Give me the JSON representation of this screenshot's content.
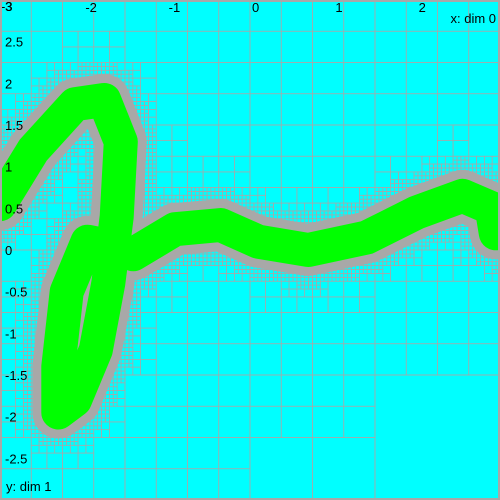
{
  "chart_data": {
    "type": "heatmap",
    "title": "",
    "xlabel": "x: dim 0",
    "ylabel": "y: dim 1",
    "xlim": [
      -3,
      3
    ],
    "ylim": [
      -3,
      3
    ],
    "x_ticks": [
      "-2",
      "-1",
      "0",
      "1",
      "2"
    ],
    "x_tick_values": [
      -2,
      -1,
      0,
      1,
      2
    ],
    "y_ticks": [
      "3",
      "2.5",
      "2",
      "1.5",
      "1",
      "0.5",
      "0",
      "-0.5",
      "-1",
      "-1.5",
      "-2",
      "-2.5"
    ],
    "y_tick_values": [
      3,
      2.5,
      2,
      1.5,
      1,
      0.5,
      0,
      -0.5,
      -1,
      -1.5,
      -2,
      -2.5
    ],
    "corner_label": "-3",
    "region_path": [
      [
        -3.0,
        0.55
      ],
      [
        -2.6,
        1.2
      ],
      [
        -2.1,
        1.75
      ],
      [
        -1.75,
        1.8
      ],
      [
        -1.55,
        1.3
      ],
      [
        -1.6,
        0.4
      ],
      [
        -1.7,
        -0.4
      ],
      [
        -1.85,
        -1.2
      ],
      [
        -2.1,
        -1.8
      ],
      [
        -2.3,
        -1.95
      ],
      [
        -2.3,
        -1.4
      ],
      [
        -2.2,
        -0.5
      ],
      [
        -1.95,
        0.1
      ],
      [
        -1.7,
        0.05
      ],
      [
        -1.4,
        -0.05
      ],
      [
        -0.9,
        0.25
      ],
      [
        -0.35,
        0.3
      ],
      [
        0.1,
        0.1
      ],
      [
        0.7,
        0.0
      ],
      [
        1.4,
        0.15
      ],
      [
        2.0,
        0.45
      ],
      [
        2.55,
        0.65
      ],
      [
        2.9,
        0.5
      ],
      [
        2.95,
        0.2
      ]
    ],
    "grid": true,
    "colors": {
      "background": "#00ffff",
      "region_fill": "#00ff00",
      "region_edge": "#a8a8a8",
      "grid_line": "#a8a8a8",
      "frame": "#a8a8a8"
    }
  }
}
